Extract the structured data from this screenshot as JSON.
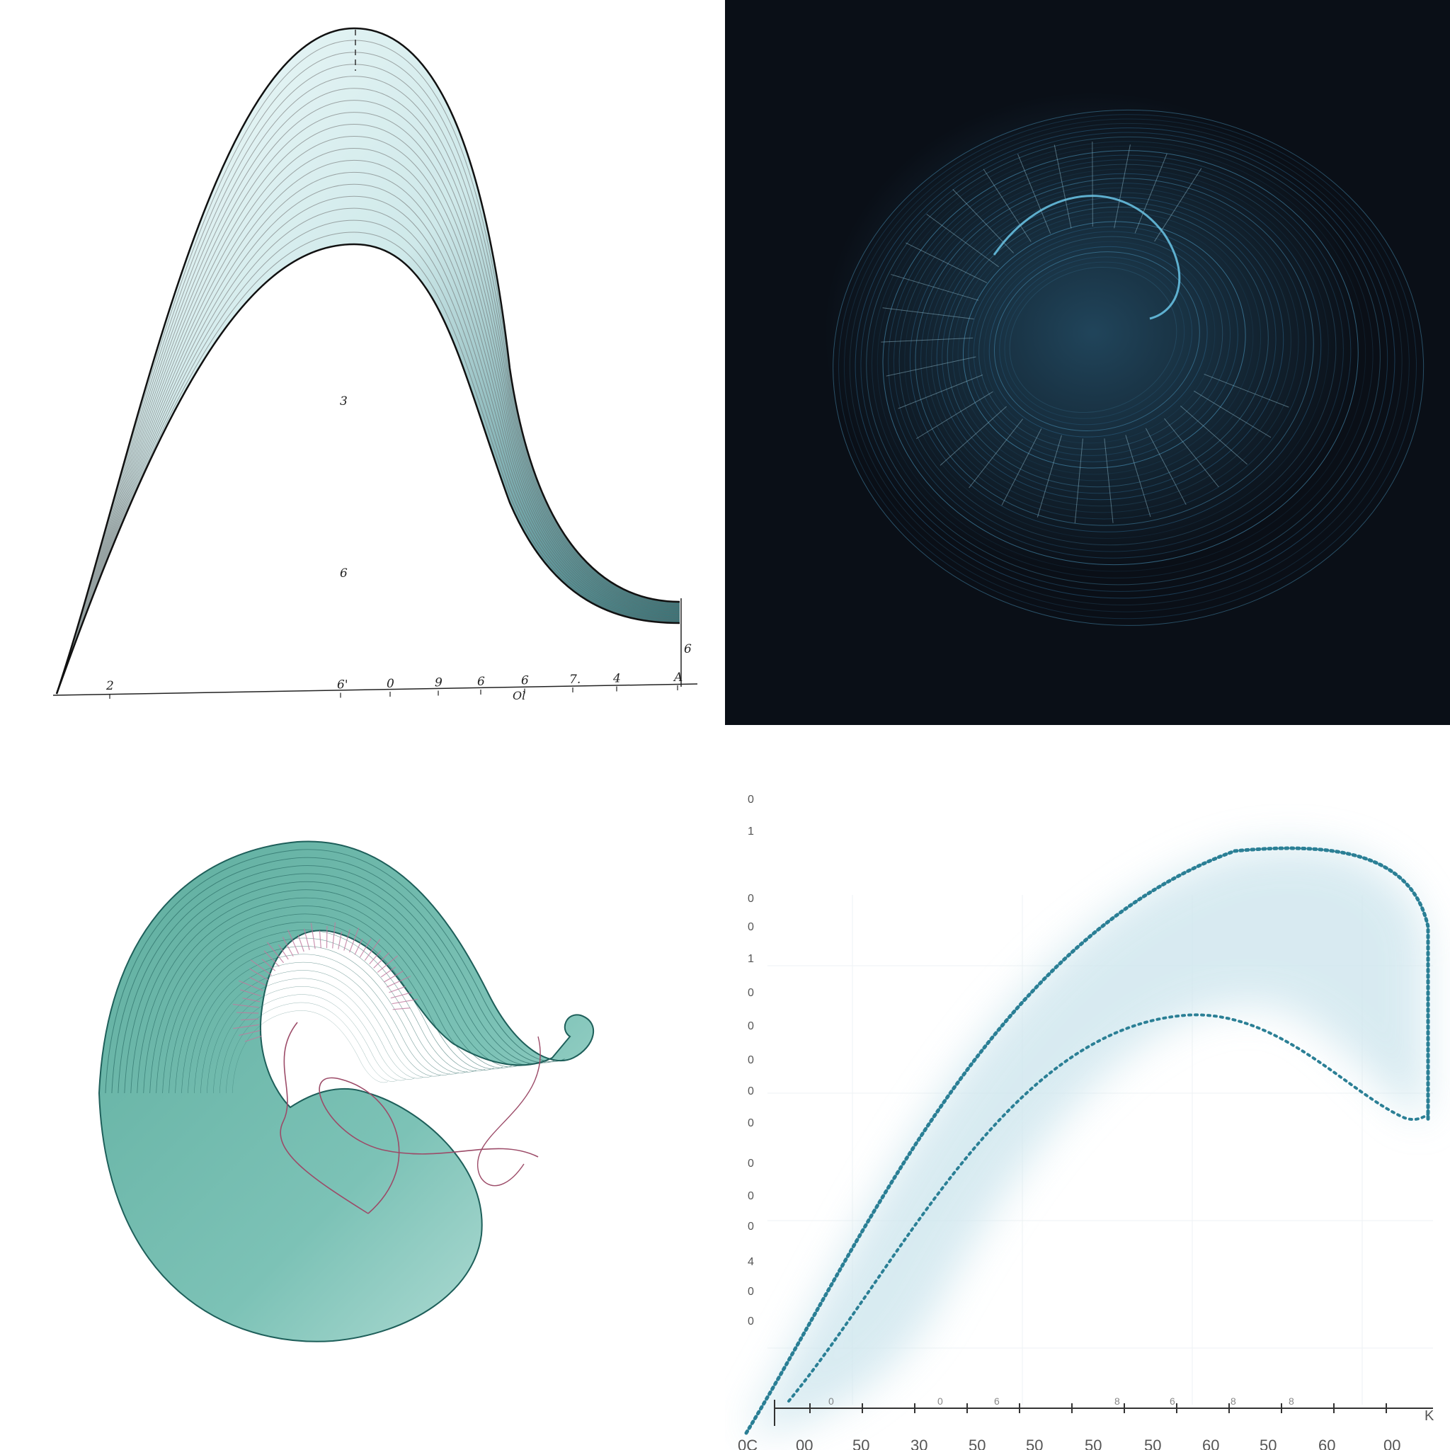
{
  "panel_top_left": {
    "axis_labels": [
      "2",
      "6'",
      "0",
      "9",
      "6",
      "6",
      "7.",
      "4",
      "A"
    ],
    "axis_sublabel": "Ol",
    "right_label": "6",
    "inner_labels": [
      "3",
      "6"
    ],
    "colors": {
      "band_light": "#eaf6f7",
      "band_dark": "#1f6b70",
      "stroke": "#111111"
    }
  },
  "panel_top_right": {
    "colors": {
      "background": "#0a0f17",
      "glow": "#4aa8d8",
      "line": "#2e6f99"
    }
  },
  "panel_bottom_left": {
    "colors": {
      "body": "#6bb5ad",
      "lines": "#1e5f5a",
      "accent": "#c07a9e"
    }
  },
  "panel_bottom_right": {
    "y_labels": [
      "0",
      "1",
      "0",
      "0",
      "1",
      "0",
      "0",
      "0",
      "0",
      "0",
      "0",
      "0",
      "0",
      "4",
      "0",
      "0"
    ],
    "x_labels": [
      "0C",
      "00",
      "50",
      "30",
      "50",
      "50",
      "50",
      "50",
      "60",
      "50",
      "60",
      "00"
    ],
    "x_tick_labels": [
      "0",
      "0",
      "6",
      "8",
      "6",
      "8",
      "8"
    ],
    "corner_label": "K",
    "colors": {
      "curve": "#2a7f95",
      "haze": "#cfe6ee",
      "axis": "#333333"
    }
  }
}
